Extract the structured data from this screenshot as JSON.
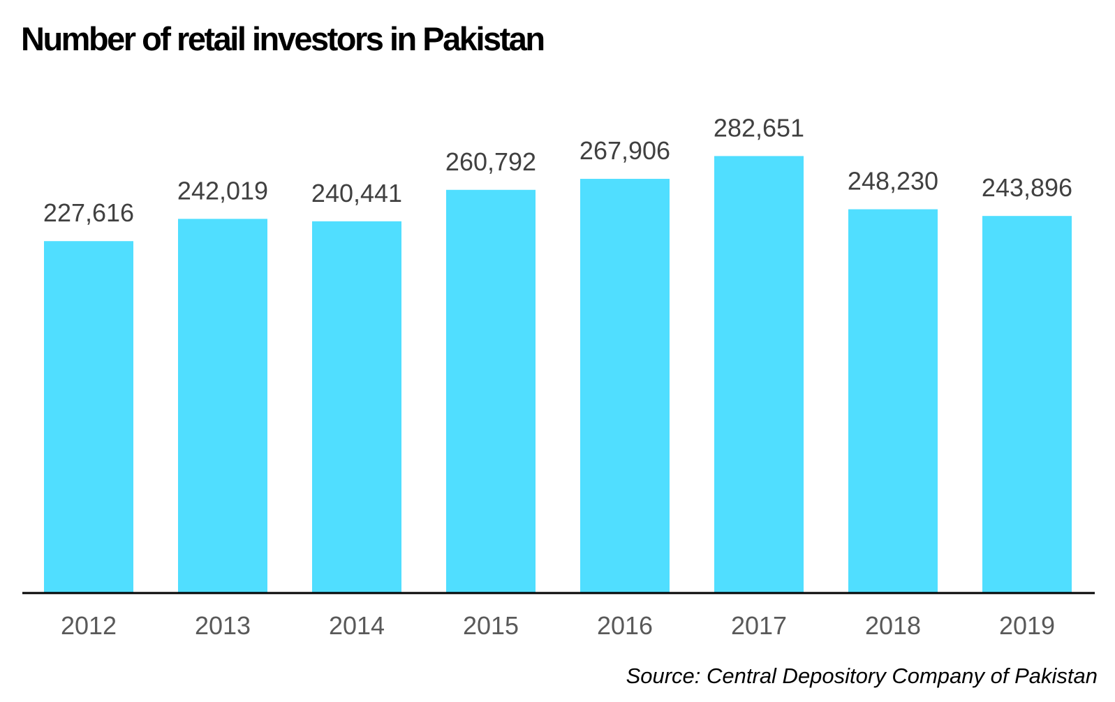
{
  "chart_data": {
    "type": "bar",
    "title": "Number of retail investors in Pakistan",
    "categories": [
      "2012",
      "2013",
      "2014",
      "2015",
      "2016",
      "2017",
      "2018",
      "2019"
    ],
    "values": [
      227616,
      242019,
      240441,
      260792,
      267906,
      282651,
      248230,
      243896
    ],
    "data_labels": [
      "227,616",
      "242,019",
      "240,441",
      "260,792",
      "267,906",
      "282,651",
      "248,230",
      "243,896"
    ],
    "xlabel": "",
    "ylabel": "",
    "ylim": [
      0,
      300000
    ],
    "grid": false,
    "legend": "none",
    "bar_color": "#50DEFF",
    "source": "Source: Central Depository Company of Pakistan"
  }
}
